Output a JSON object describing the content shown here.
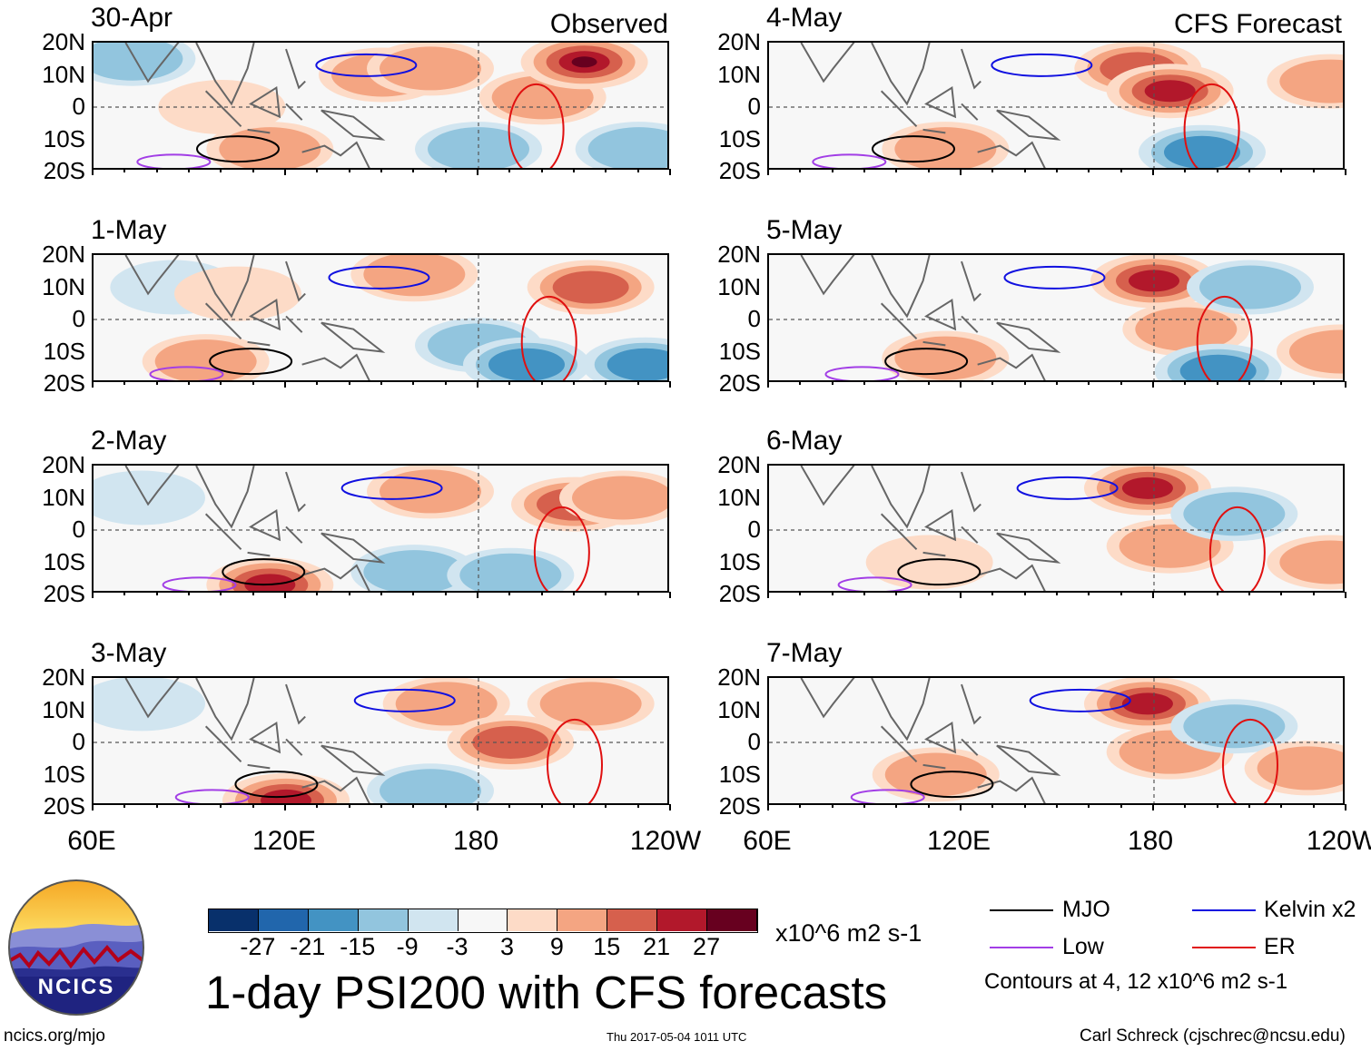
{
  "header": {
    "observed_label": "Observed",
    "forecast_label": "CFS Forecast"
  },
  "chart_data": {
    "type": "heatmap",
    "title": "1-day PSI200 with CFS forecasts",
    "units": "x10^6 m2 s-1",
    "lat_ticks": [
      "20N",
      "10N",
      "0",
      "10S",
      "20S"
    ],
    "lat_range": [
      -20,
      20
    ],
    "lon_ticks": [
      "60E",
      "120E",
      "180",
      "120W"
    ],
    "lon_range": [
      60,
      240
    ],
    "panels": [
      {
        "date": "30-Apr",
        "kind": "observed",
        "anomalies": [
          {
            "lon": 72,
            "lat": 15,
            "value": -12
          },
          {
            "lon": 100,
            "lat": 0,
            "value": 4
          },
          {
            "lon": 115,
            "lat": -13,
            "value": 10
          },
          {
            "lon": 150,
            "lat": 10,
            "value": 10
          },
          {
            "lon": 165,
            "lat": 12,
            "value": 12
          },
          {
            "lon": 180,
            "lat": -13,
            "value": -10
          },
          {
            "lon": 200,
            "lat": 3,
            "value": 14
          },
          {
            "lon": 213,
            "lat": 14,
            "value": 28
          },
          {
            "lon": 230,
            "lat": -13,
            "value": -10
          }
        ]
      },
      {
        "date": "1-May",
        "kind": "observed",
        "anomalies": [
          {
            "lon": 85,
            "lat": 10,
            "value": -6
          },
          {
            "lon": 105,
            "lat": 8,
            "value": 5
          },
          {
            "lon": 95,
            "lat": -13,
            "value": 9
          },
          {
            "lon": 160,
            "lat": 14,
            "value": 10
          },
          {
            "lon": 180,
            "lat": -8,
            "value": -9
          },
          {
            "lon": 195,
            "lat": -14,
            "value": -20
          },
          {
            "lon": 215,
            "lat": 10,
            "value": 18
          },
          {
            "lon": 232,
            "lat": -14,
            "value": -16
          }
        ]
      },
      {
        "date": "2-May",
        "kind": "observed",
        "anomalies": [
          {
            "lon": 75,
            "lat": 10,
            "value": -6
          },
          {
            "lon": 115,
            "lat": -17,
            "value": 22
          },
          {
            "lon": 160,
            "lat": -13,
            "value": -12
          },
          {
            "lon": 190,
            "lat": -14,
            "value": -14
          },
          {
            "lon": 165,
            "lat": 12,
            "value": 11
          },
          {
            "lon": 210,
            "lat": 8,
            "value": 16
          },
          {
            "lon": 225,
            "lat": 10,
            "value": 14
          }
        ]
      },
      {
        "date": "3-May",
        "kind": "observed",
        "anomalies": [
          {
            "lon": 75,
            "lat": 12,
            "value": -6
          },
          {
            "lon": 120,
            "lat": -18,
            "value": 24
          },
          {
            "lon": 165,
            "lat": -15,
            "value": -12
          },
          {
            "lon": 170,
            "lat": 12,
            "value": 13
          },
          {
            "lon": 190,
            "lat": 0,
            "value": 16
          },
          {
            "lon": 215,
            "lat": 12,
            "value": 10
          }
        ]
      },
      {
        "date": "4-May",
        "kind": "forecast",
        "anomalies": [
          {
            "lon": 115,
            "lat": -13,
            "value": 10
          },
          {
            "lon": 175,
            "lat": 12,
            "value": 20
          },
          {
            "lon": 185,
            "lat": 5,
            "value": 22
          },
          {
            "lon": 195,
            "lat": -14,
            "value": -18
          },
          {
            "lon": 235,
            "lat": 8,
            "value": 14
          }
        ]
      },
      {
        "date": "5-May",
        "kind": "forecast",
        "anomalies": [
          {
            "lon": 115,
            "lat": -12,
            "value": 10
          },
          {
            "lon": 180,
            "lat": 12,
            "value": 22
          },
          {
            "lon": 190,
            "lat": -3,
            "value": 12
          },
          {
            "lon": 210,
            "lat": 10,
            "value": -10
          },
          {
            "lon": 200,
            "lat": -16,
            "value": -16
          },
          {
            "lon": 238,
            "lat": -10,
            "value": 14
          }
        ]
      },
      {
        "date": "6-May",
        "kind": "forecast",
        "anomalies": [
          {
            "lon": 110,
            "lat": -10,
            "value": 8
          },
          {
            "lon": 178,
            "lat": 13,
            "value": 24
          },
          {
            "lon": 185,
            "lat": -5,
            "value": 12
          },
          {
            "lon": 205,
            "lat": 5,
            "value": -12
          },
          {
            "lon": 235,
            "lat": -10,
            "value": 14
          }
        ]
      },
      {
        "date": "7-May",
        "kind": "forecast",
        "anomalies": [
          {
            "lon": 112,
            "lat": -10,
            "value": 9
          },
          {
            "lon": 178,
            "lat": 12,
            "value": 24
          },
          {
            "lon": 185,
            "lat": -3,
            "value": 10
          },
          {
            "lon": 205,
            "lat": 5,
            "value": -11
          },
          {
            "lon": 228,
            "lat": -8,
            "value": 12
          }
        ]
      }
    ]
  },
  "colorbar": {
    "colors": [
      "#08306b",
      "#2166ac",
      "#4393c3",
      "#92c5de",
      "#d1e5f0",
      "#f7f7f7",
      "#fddbc7",
      "#f4a582",
      "#d6604d",
      "#b2182b",
      "#67001f"
    ],
    "ticks": [
      "-27",
      "-21",
      "-15",
      "-9",
      "-3",
      "3",
      "9",
      "15",
      "21",
      "27"
    ],
    "units": "x10^6 m2 s-1"
  },
  "legend": {
    "items": [
      {
        "label": "MJO",
        "color": "#000000"
      },
      {
        "label": "Kelvin x2",
        "color": "#1010e0"
      },
      {
        "label": "Low",
        "color": "#a23ee6"
      },
      {
        "label": "ER",
        "color": "#e01010"
      }
    ],
    "note": "Contours at 4, 12 x10^6 m2 s-1"
  },
  "logo": {
    "text": "NCICS"
  },
  "footer": {
    "url": "ncics.org/mjo",
    "timestamp": "Thu 2017-05-04 1011 UTC",
    "credit": "Carl Schreck (cjschrec@ncsu.edu)"
  }
}
